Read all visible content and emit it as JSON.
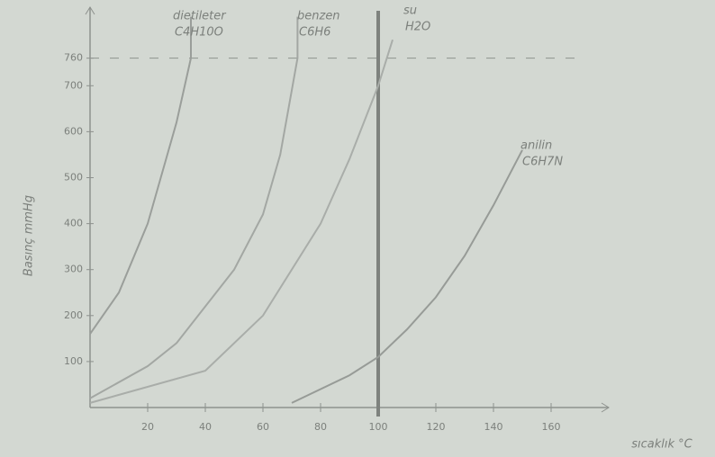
{
  "chart_data": {
    "type": "line",
    "x_label": "sıcaklık °C",
    "y_label": "Basınç mmHg",
    "xlim": [
      0,
      180
    ],
    "ylim": [
      0,
      850
    ],
    "xticks": [
      20,
      40,
      60,
      80,
      100,
      120,
      140,
      160
    ],
    "yticks": [
      100,
      200,
      300,
      400,
      500,
      600,
      700,
      760
    ],
    "reference_line_y": 760,
    "vertical_line_x": 100,
    "series": [
      {
        "name": "dietileter",
        "formula": "C4H10O",
        "color": "#9a9e9a",
        "x": [
          0,
          10,
          20,
          30,
          35,
          35
        ],
        "values": [
          160,
          250,
          400,
          620,
          760,
          850
        ]
      },
      {
        "name": "benzen",
        "formula": "C6H6",
        "color": "#a3a7a3",
        "x": [
          0,
          20,
          30,
          50,
          60,
          66,
          72,
          72
        ],
        "values": [
          20,
          90,
          140,
          300,
          420,
          550,
          760,
          850
        ]
      },
      {
        "name": "su",
        "formula": "H2O",
        "color": "#a9ada9",
        "x": [
          0,
          40,
          60,
          80,
          90,
          100,
          105
        ],
        "values": [
          10,
          80,
          200,
          400,
          540,
          700,
          800
        ]
      },
      {
        "name": "anilin",
        "formula": "C6H7N",
        "color": "#979b97",
        "x": [
          70,
          90,
          100,
          110,
          120,
          130,
          140,
          150
        ],
        "values": [
          10,
          70,
          110,
          170,
          240,
          330,
          440,
          560
        ]
      }
    ]
  }
}
